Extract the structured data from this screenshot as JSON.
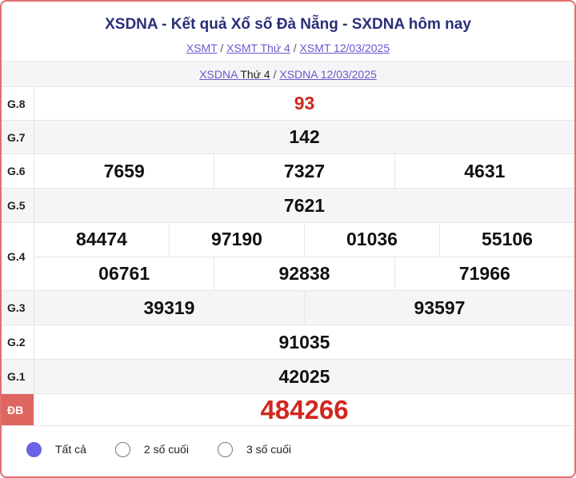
{
  "title": "XSDNA - Kết quả Xổ số Đà Nẵng - SXDNA hôm nay",
  "links": [
    "XSMT",
    "XSMT Thứ 4",
    "XSMT 12/03/2025"
  ],
  "sub": {
    "a1": "XSDNA",
    "a1b": "Thứ 4",
    "a2": "XSDNA 12/03/2025"
  },
  "prizes": [
    {
      "label": "G.8",
      "lines": [
        [
          "93"
        ]
      ]
    },
    {
      "label": "G.7",
      "lines": [
        [
          "142"
        ]
      ]
    },
    {
      "label": "G.6",
      "lines": [
        [
          "7659",
          "7327",
          "4631"
        ]
      ]
    },
    {
      "label": "G.5",
      "lines": [
        [
          "7621"
        ]
      ]
    },
    {
      "label": "G.4",
      "lines": [
        [
          "84474",
          "97190",
          "01036",
          "55106"
        ],
        [
          "06761",
          "92838",
          "71966"
        ]
      ]
    },
    {
      "label": "G.3",
      "lines": [
        [
          "39319",
          "93597"
        ]
      ]
    },
    {
      "label": "G.2",
      "lines": [
        [
          "91035"
        ]
      ]
    },
    {
      "label": "G.1",
      "lines": [
        [
          "42025"
        ]
      ]
    },
    {
      "label": "ĐB",
      "lines": [
        [
          "484266"
        ]
      ]
    }
  ],
  "filters": [
    {
      "label": "Tất cả",
      "selected": true
    },
    {
      "label": "2 số cuối",
      "selected": false
    },
    {
      "label": "3 số cuối",
      "selected": false
    }
  ],
  "colors": {
    "accent": "#6b63e6",
    "prize_red": "#d0281e",
    "border": "#e07070"
  }
}
